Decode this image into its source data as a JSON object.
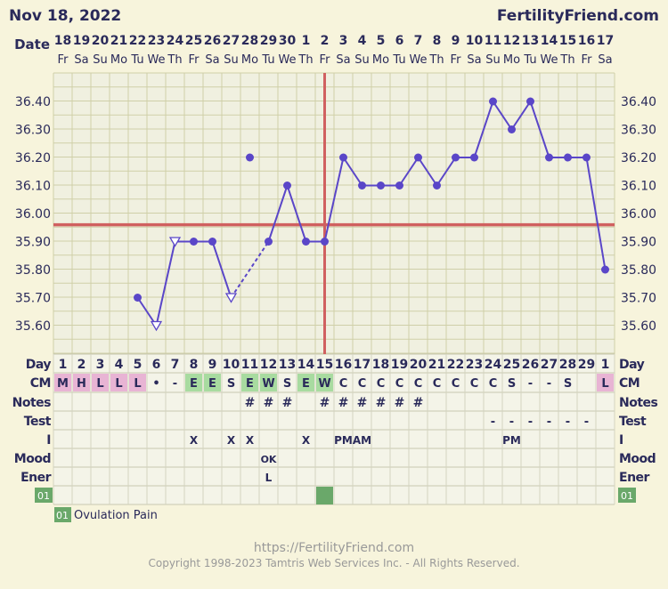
{
  "header": {
    "date": "Nov 18, 2022",
    "brand": "FertilityFriend.com"
  },
  "footer": {
    "url": "https://FertilityFriend.com",
    "copyright": "Copyright 1998-2023 Tamtris Web Services Inc. - All Rights Reserved."
  },
  "row_labels": {
    "date": "Date",
    "day": "Day",
    "cm": "CM",
    "notes": "Notes",
    "test": "Test",
    "i": "I",
    "mood": "Mood",
    "ener": "Ener",
    "ov": "01"
  },
  "legend": {
    "code": "01",
    "label": "Ovulation Pain"
  },
  "colors": {
    "line": "#5a46c8",
    "grid": "#cfcfa8",
    "coverline": "#d06060",
    "green": "#a8dba0",
    "pink": "#e8b4d4",
    "ov": "#6aa86a",
    "panel": "#f0f0e0"
  },
  "chart_data": {
    "type": "line",
    "title": "",
    "ylabel": "",
    "ylim": [
      35.5,
      36.5
    ],
    "yticks": [
      "35.60",
      "35.70",
      "35.80",
      "35.90",
      "36.00",
      "36.10",
      "36.20",
      "36.30",
      "36.40"
    ],
    "dates": [
      "18",
      "19",
      "20",
      "21",
      "22",
      "23",
      "24",
      "25",
      "26",
      "27",
      "28",
      "29",
      "30",
      "1",
      "2",
      "3",
      "4",
      "5",
      "6",
      "7",
      "8",
      "9",
      "10",
      "11",
      "12",
      "13",
      "14",
      "15",
      "16",
      "17"
    ],
    "weekdays": [
      "Fr",
      "Sa",
      "Su",
      "Mo",
      "Tu",
      "We",
      "Th",
      "Fr",
      "Sa",
      "Su",
      "Mo",
      "Tu",
      "We",
      "Th",
      "Fr",
      "Sa",
      "Su",
      "Mo",
      "Tu",
      "We",
      "Th",
      "Fr",
      "Sa",
      "Su",
      "Mo",
      "Tu",
      "We",
      "Th",
      "Fr",
      "Sa"
    ],
    "days": [
      "1",
      "2",
      "3",
      "4",
      "5",
      "6",
      "7",
      "8",
      "9",
      "10",
      "11",
      "12",
      "13",
      "14",
      "15",
      "16",
      "17",
      "18",
      "19",
      "20",
      "21",
      "22",
      "23",
      "24",
      "25",
      "26",
      "27",
      "28",
      "29",
      "1"
    ],
    "temps": [
      null,
      null,
      null,
      null,
      35.7,
      35.6,
      35.9,
      35.9,
      35.9,
      35.7,
      36.2,
      35.9,
      36.1,
      35.9,
      35.9,
      36.2,
      36.1,
      36.1,
      36.1,
      36.2,
      36.1,
      36.2,
      36.2,
      36.4,
      36.3,
      36.4,
      36.2,
      36.2,
      36.2,
      35.8
    ],
    "open_markers": [
      5,
      6,
      9
    ],
    "disconnected": [
      10
    ],
    "dashed_segments": [
      [
        9,
        11
      ]
    ],
    "coverline": 35.96,
    "ovulation_day_index": 14,
    "cm": [
      "M",
      "H",
      "L",
      "L",
      "L",
      "•",
      "-",
      "E",
      "E",
      "S",
      "E",
      "W",
      "S",
      "E",
      "W",
      "C",
      "C",
      "C",
      "C",
      "C",
      "C",
      "C",
      "C",
      "C",
      "S",
      "-",
      "-",
      "S",
      "",
      "L"
    ],
    "cm_colors": [
      "pink",
      "pink",
      "pink",
      "pink",
      "pink",
      "",
      "",
      "green",
      "green",
      "",
      "green",
      "green",
      "",
      "green",
      "green",
      "",
      "",
      "",
      "",
      "",
      "",
      "",
      "",
      "",
      "",
      "",
      "",
      "",
      "",
      "pink"
    ],
    "notes": [
      "",
      "",
      "",
      "",
      "",
      "",
      "",
      "",
      "",
      "",
      "#",
      "#",
      "#",
      "",
      "#",
      "#",
      "#",
      "#",
      "#",
      "#",
      "",
      "",
      "",
      "",
      "",
      "",
      "",
      "",
      "",
      ""
    ],
    "test": [
      "",
      "",
      "",
      "",
      "",
      "",
      "",
      "",
      "",
      "",
      "",
      "",
      "",
      "",
      "",
      "",
      "",
      "",
      "",
      "",
      "",
      "",
      "",
      "-",
      "-",
      "-",
      "-",
      "-",
      "-",
      ""
    ],
    "intercourse": [
      "",
      "",
      "",
      "",
      "",
      "",
      "",
      "X",
      "",
      "X",
      "X",
      "",
      "",
      "X",
      "",
      "PM",
      "AM",
      "",
      "",
      "",
      "",
      "",
      "",
      "",
      "PM",
      "",
      "",
      "",
      "",
      ""
    ],
    "mood": [
      "",
      "",
      "",
      "",
      "",
      "",
      "",
      "",
      "",
      "",
      "",
      "OK",
      "",
      "",
      "",
      "",
      "",
      "",
      "",
      "",
      "",
      "",
      "",
      "",
      "",
      "",
      "",
      "",
      "",
      ""
    ],
    "energy": [
      "",
      "",
      "",
      "",
      "",
      "",
      "",
      "",
      "",
      "",
      "",
      "L",
      "",
      "",
      "",
      "",
      "",
      "",
      "",
      "",
      "",
      "",
      "",
      "",
      "",
      "",
      "",
      "",
      "",
      ""
    ],
    "ovulation_pain": [
      false,
      false,
      false,
      false,
      false,
      false,
      false,
      false,
      false,
      false,
      false,
      false,
      false,
      false,
      true,
      false,
      false,
      false,
      false,
      false,
      false,
      false,
      false,
      false,
      false,
      false,
      false,
      false,
      false,
      false
    ]
  }
}
